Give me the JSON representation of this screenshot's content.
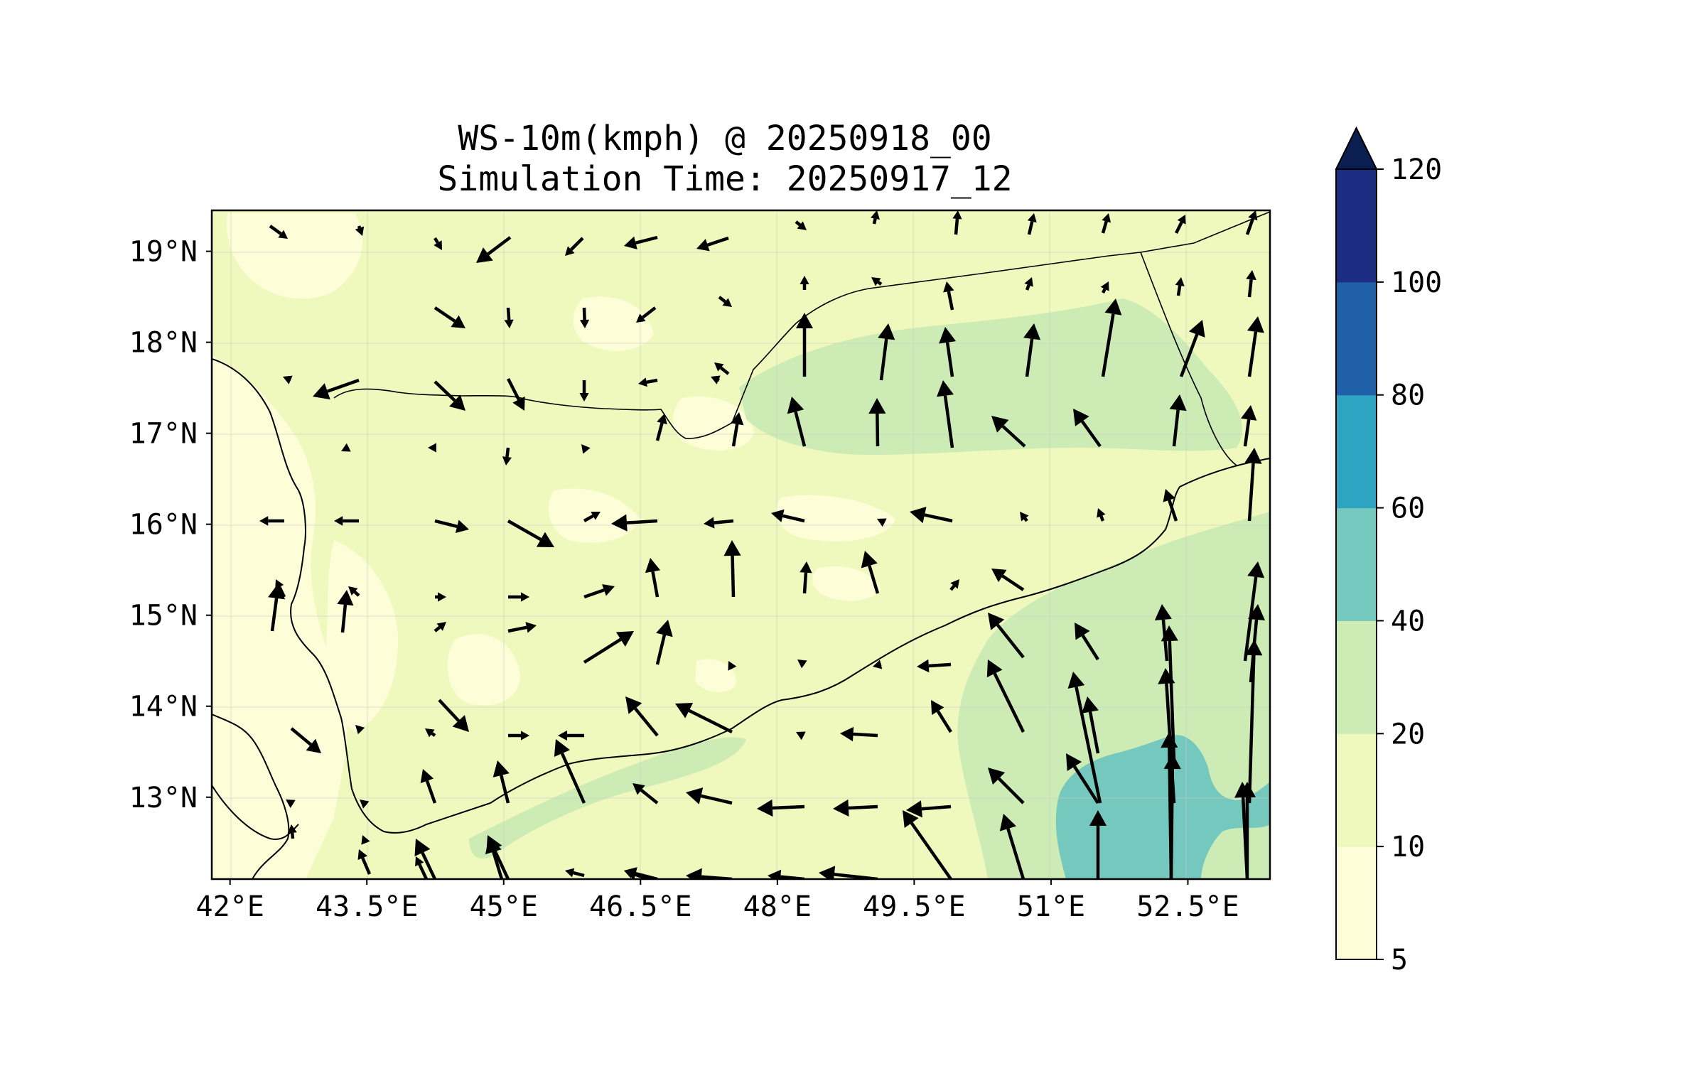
{
  "title": {
    "line1": "WS-10m(kmph) @ 20250918_00",
    "line2": "Simulation Time: 20250917_12"
  },
  "map": {
    "lon_range": [
      41.8,
      53.4
    ],
    "lat_range": [
      12.1,
      19.45
    ],
    "x_ticks": [
      {
        "lon": 42.0,
        "label": "42°E"
      },
      {
        "lon": 43.5,
        "label": "43.5°E"
      },
      {
        "lon": 45.0,
        "label": "45°E"
      },
      {
        "lon": 46.5,
        "label": "46.5°E"
      },
      {
        "lon": 48.0,
        "label": "48°E"
      },
      {
        "lon": 49.5,
        "label": "49.5°E"
      },
      {
        "lon": 51.0,
        "label": "51°E"
      },
      {
        "lon": 52.5,
        "label": "52.5°E"
      }
    ],
    "y_ticks": [
      {
        "lat": 19.0,
        "label": "19°N"
      },
      {
        "lat": 18.0,
        "label": "18°N"
      },
      {
        "lat": 17.0,
        "label": "17°N"
      },
      {
        "lat": 16.0,
        "label": "16°N"
      },
      {
        "lat": 15.0,
        "label": "15°N"
      },
      {
        "lat": 14.0,
        "label": "14°N"
      },
      {
        "lat": 13.0,
        "label": "13°N"
      }
    ],
    "background_color": "#eff9bd"
  },
  "colorbar": {
    "levels": [
      5,
      10,
      20,
      40,
      60,
      80,
      100,
      120
    ],
    "labels": [
      "5",
      "10",
      "20",
      "40",
      "60",
      "80",
      "100",
      "120"
    ],
    "colors": [
      "#fdfed7",
      "#eff9bd",
      "#cdebb4",
      "#75c8bd",
      "#2ea3c2",
      "#2060a8",
      "#1c2c80"
    ],
    "extend_color": "#0b1e52",
    "extend": "max",
    "units": "kmph"
  }
}
